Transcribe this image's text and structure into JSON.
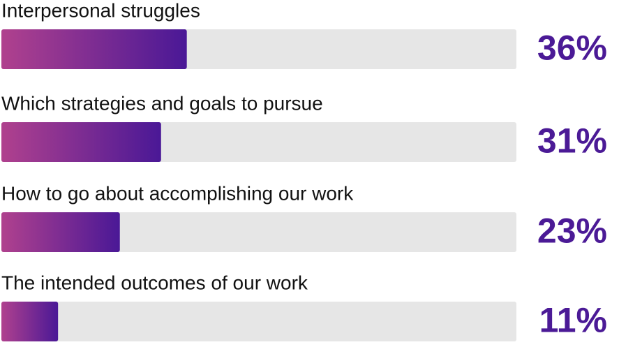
{
  "chart_data": {
    "type": "hbar",
    "categories": [
      "Interpersonal struggles",
      "Which strategies and goals to pursue",
      "How to go about accomplishing our work",
      "The intended outcomes of our work"
    ],
    "values": [
      36,
      31,
      23,
      11
    ],
    "value_labels": [
      "36%",
      "31%",
      "23%",
      "11%"
    ],
    "xlim": [
      0,
      100
    ],
    "gradient": [
      "#b0418e",
      "#4a1896"
    ],
    "track_color": "#e6e6e6",
    "label_color": "#4b1a96"
  }
}
